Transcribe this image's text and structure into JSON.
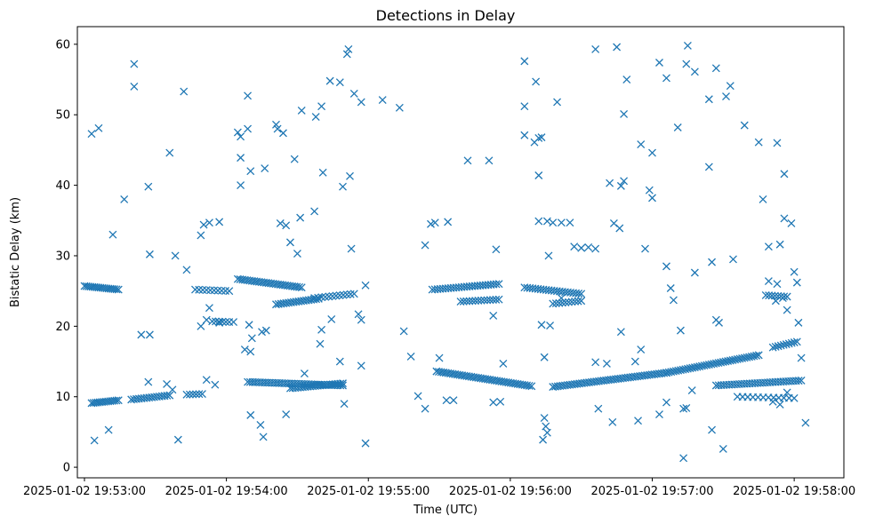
{
  "chart_data": {
    "type": "scatter",
    "title": "Detections in Delay",
    "xlabel": "Time (UTC)",
    "ylabel": "Bistatic Delay (km)",
    "marker": "x",
    "color": "#1f77b4",
    "grid": false,
    "x_unit": "minutes since 2025-01-02 19:53:00",
    "xlim": [
      -0.05,
      5.35
    ],
    "ylim": [
      -1.5,
      62.5
    ],
    "x_ticks": [
      {
        "value": 0,
        "label": "2025-01-02 19:53:00"
      },
      {
        "value": 1,
        "label": "2025-01-02 19:54:00"
      },
      {
        "value": 2,
        "label": "2025-01-02 19:55:00"
      },
      {
        "value": 3,
        "label": "2025-01-02 19:56:00"
      },
      {
        "value": 4,
        "label": "2025-01-02 19:57:00"
      },
      {
        "value": 5,
        "label": "2025-01-02 19:58:00"
      }
    ],
    "y_ticks": [
      {
        "value": 0,
        "label": "0"
      },
      {
        "value": 10,
        "label": "10"
      },
      {
        "value": 20,
        "label": "20"
      },
      {
        "value": 30,
        "label": "30"
      },
      {
        "value": 40,
        "label": "40"
      },
      {
        "value": 50,
        "label": "50"
      },
      {
        "value": 60,
        "label": "60"
      }
    ],
    "tracks": [
      {
        "name": "track-upper-early",
        "x0": 0.0,
        "x1": 0.24,
        "y0": 25.7,
        "y1": 25.2,
        "n": 18
      },
      {
        "name": "track-lower-early",
        "x0": 0.05,
        "x1": 0.24,
        "y0": 9.1,
        "y1": 9.5,
        "n": 14
      },
      {
        "name": "track-lower-rise",
        "x0": 0.33,
        "x1": 0.6,
        "y0": 9.6,
        "y1": 10.2,
        "n": 16
      },
      {
        "name": "track-lower-flat",
        "x0": 0.72,
        "x1": 0.83,
        "y0": 10.3,
        "y1": 10.4,
        "n": 6
      },
      {
        "name": "track-upper-mid",
        "x0": 0.78,
        "x1": 1.02,
        "y0": 25.2,
        "y1": 25.0,
        "n": 10
      },
      {
        "name": "track-upper-mid2",
        "x0": 0.9,
        "x1": 1.02,
        "y0": 20.7,
        "y1": 20.6,
        "n": 6
      },
      {
        "name": "track-upper-dec",
        "x0": 1.08,
        "x1": 1.53,
        "y0": 26.7,
        "y1": 25.5,
        "n": 28
      },
      {
        "name": "track-upper-rise",
        "x0": 1.35,
        "x1": 1.65,
        "y0": 23.1,
        "y1": 23.9,
        "n": 18
      },
      {
        "name": "track-lower-mid",
        "x0": 1.15,
        "x1": 1.82,
        "y0": 12.1,
        "y1": 11.6,
        "n": 40
      },
      {
        "name": "track-lower-mid2",
        "x0": 1.45,
        "x1": 1.82,
        "y0": 11.2,
        "y1": 11.9,
        "n": 22
      },
      {
        "name": "track-upper-mid3",
        "x0": 1.62,
        "x1": 1.9,
        "y0": 24.0,
        "y1": 24.6,
        "n": 12
      },
      {
        "name": "track-upper-center",
        "x0": 2.45,
        "x1": 2.92,
        "y0": 25.2,
        "y1": 26.0,
        "n": 26
      },
      {
        "name": "track-upper-center2",
        "x0": 2.65,
        "x1": 2.92,
        "y0": 23.5,
        "y1": 23.8,
        "n": 14
      },
      {
        "name": "track-lower-dec",
        "x0": 2.48,
        "x1": 3.15,
        "y0": 13.6,
        "y1": 11.5,
        "n": 42
      },
      {
        "name": "track-upper-late",
        "x0": 3.1,
        "x1": 3.5,
        "y0": 25.5,
        "y1": 24.6,
        "n": 22
      },
      {
        "name": "track-upper-late2",
        "x0": 3.3,
        "x1": 3.5,
        "y0": 23.2,
        "y1": 23.6,
        "n": 10
      },
      {
        "name": "track-lower-rise2",
        "x0": 3.3,
        "x1": 4.1,
        "y0": 11.4,
        "y1": 13.4,
        "n": 48
      },
      {
        "name": "track-lower-rise3",
        "x0": 4.1,
        "x1": 4.75,
        "y0": 13.4,
        "y1": 15.9,
        "n": 40
      },
      {
        "name": "track-lower-flat2",
        "x0": 4.45,
        "x1": 5.05,
        "y0": 11.6,
        "y1": 12.3,
        "n": 34
      },
      {
        "name": "track-lower-late",
        "x0": 4.85,
        "x1": 5.02,
        "y0": 17.0,
        "y1": 17.8,
        "n": 10
      },
      {
        "name": "track-lower-late2",
        "x0": 4.6,
        "x1": 5.0,
        "y0": 10.0,
        "y1": 9.8,
        "n": 12
      },
      {
        "name": "track-upper-end",
        "x0": 4.8,
        "x1": 4.95,
        "y0": 24.4,
        "y1": 24.2,
        "n": 8
      }
    ],
    "scatter_points": [
      [
        0.05,
        47.3
      ],
      [
        0.1,
        48.1
      ],
      [
        0.35,
        57.2
      ],
      [
        0.35,
        54.0
      ],
      [
        0.45,
        39.8
      ],
      [
        0.28,
        38.0
      ],
      [
        0.2,
        33.0
      ],
      [
        0.46,
        30.2
      ],
      [
        0.6,
        44.6
      ],
      [
        0.7,
        53.3
      ],
      [
        0.64,
        30.0
      ],
      [
        0.72,
        28.0
      ],
      [
        0.84,
        34.4
      ],
      [
        0.88,
        34.7
      ],
      [
        0.95,
        34.8
      ],
      [
        0.82,
        32.9
      ],
      [
        0.17,
        5.3
      ],
      [
        0.07,
        3.8
      ],
      [
        0.66,
        3.9
      ],
      [
        0.4,
        18.8
      ],
      [
        0.46,
        18.8
      ],
      [
        0.45,
        12.1
      ],
      [
        0.58,
        11.8
      ],
      [
        0.62,
        11.0
      ],
      [
        0.82,
        20.0
      ],
      [
        0.86,
        20.9
      ],
      [
        0.88,
        22.6
      ],
      [
        0.92,
        11.7
      ],
      [
        0.86,
        12.4
      ],
      [
        0.95,
        20.5
      ],
      [
        1.05,
        20.6
      ],
      [
        1.08,
        47.5
      ],
      [
        1.1,
        46.9
      ],
      [
        1.1,
        43.9
      ],
      [
        1.17,
        42.0
      ],
      [
        1.15,
        52.7
      ],
      [
        1.15,
        48.0
      ],
      [
        1.27,
        42.4
      ],
      [
        1.35,
        48.6
      ],
      [
        1.36,
        48.0
      ],
      [
        1.4,
        47.4
      ],
      [
        1.48,
        43.7
      ],
      [
        1.53,
        50.6
      ],
      [
        1.63,
        49.7
      ],
      [
        1.67,
        51.2
      ],
      [
        1.73,
        54.8
      ],
      [
        1.8,
        54.6
      ],
      [
        1.85,
        58.6
      ],
      [
        1.86,
        59.3
      ],
      [
        1.9,
        53.0
      ],
      [
        1.95,
        51.8
      ],
      [
        1.87,
        41.3
      ],
      [
        1.82,
        39.8
      ],
      [
        1.68,
        41.8
      ],
      [
        1.62,
        36.3
      ],
      [
        1.52,
        35.4
      ],
      [
        1.42,
        34.3
      ],
      [
        1.38,
        34.6
      ],
      [
        1.45,
        31.9
      ],
      [
        1.5,
        30.3
      ],
      [
        1.1,
        40.0
      ],
      [
        1.13,
        16.7
      ],
      [
        1.17,
        16.4
      ],
      [
        1.18,
        18.3
      ],
      [
        1.25,
        19.2
      ],
      [
        1.28,
        19.4
      ],
      [
        1.16,
        20.2
      ],
      [
        1.17,
        7.4
      ],
      [
        1.24,
        6.0
      ],
      [
        1.26,
        4.3
      ],
      [
        1.42,
        7.5
      ],
      [
        1.55,
        13.3
      ],
      [
        1.66,
        17.5
      ],
      [
        1.67,
        19.5
      ],
      [
        1.74,
        21.0
      ],
      [
        1.8,
        15.0
      ],
      [
        1.83,
        9.0
      ],
      [
        1.95,
        14.4
      ],
      [
        1.98,
        3.4
      ],
      [
        1.88,
        31.0
      ],
      [
        1.93,
        21.7
      ],
      [
        1.95,
        20.9
      ],
      [
        1.98,
        25.8
      ],
      [
        2.1,
        52.1
      ],
      [
        2.22,
        51.0
      ],
      [
        2.25,
        19.3
      ],
      [
        2.3,
        15.7
      ],
      [
        2.4,
        31.5
      ],
      [
        2.44,
        34.5
      ],
      [
        2.47,
        34.7
      ],
      [
        2.56,
        34.8
      ],
      [
        2.5,
        15.5
      ],
      [
        2.4,
        8.3
      ],
      [
        2.35,
        10.1
      ],
      [
        2.55,
        9.5
      ],
      [
        2.6,
        9.5
      ],
      [
        2.7,
        43.5
      ],
      [
        2.85,
        43.5
      ],
      [
        2.9,
        30.9
      ],
      [
        2.88,
        21.5
      ],
      [
        2.88,
        9.2
      ],
      [
        2.93,
        9.3
      ],
      [
        2.95,
        14.7
      ],
      [
        3.1,
        57.6
      ],
      [
        3.1,
        51.2
      ],
      [
        3.1,
        47.1
      ],
      [
        3.18,
        54.7
      ],
      [
        3.2,
        46.7
      ],
      [
        3.17,
        46.1
      ],
      [
        3.22,
        46.8
      ],
      [
        3.2,
        41.4
      ],
      [
        3.2,
        34.9
      ],
      [
        3.26,
        34.9
      ],
      [
        3.3,
        34.7
      ],
      [
        3.36,
        34.7
      ],
      [
        3.42,
        34.7
      ],
      [
        3.27,
        30.0
      ],
      [
        3.28,
        20.1
      ],
      [
        3.22,
        20.2
      ],
      [
        3.24,
        15.6
      ],
      [
        3.24,
        7.0
      ],
      [
        3.25,
        5.8
      ],
      [
        3.26,
        4.9
      ],
      [
        3.23,
        3.9
      ],
      [
        3.33,
        51.8
      ],
      [
        3.36,
        24.0
      ],
      [
        3.45,
        31.3
      ],
      [
        3.5,
        31.1
      ],
      [
        3.55,
        31.2
      ],
      [
        3.6,
        31.0
      ],
      [
        3.6,
        59.3
      ],
      [
        3.75,
        59.6
      ],
      [
        3.7,
        40.3
      ],
      [
        3.78,
        39.9
      ],
      [
        3.8,
        50.1
      ],
      [
        3.82,
        55.0
      ],
      [
        3.8,
        40.6
      ],
      [
        3.77,
        33.9
      ],
      [
        3.73,
        34.6
      ],
      [
        3.78,
        19.2
      ],
      [
        3.72,
        6.4
      ],
      [
        3.62,
        8.3
      ],
      [
        3.6,
        14.9
      ],
      [
        3.68,
        14.7
      ],
      [
        3.92,
        45.8
      ],
      [
        3.98,
        39.3
      ],
      [
        4.0,
        38.2
      ],
      [
        4.05,
        57.4
      ],
      [
        4.1,
        55.2
      ],
      [
        4.0,
        44.6
      ],
      [
        3.95,
        31.0
      ],
      [
        3.92,
        16.7
      ],
      [
        3.88,
        15.0
      ],
      [
        3.9,
        6.6
      ],
      [
        4.05,
        7.5
      ],
      [
        4.1,
        9.2
      ],
      [
        4.1,
        28.5
      ],
      [
        4.13,
        25.4
      ],
      [
        4.15,
        23.7
      ],
      [
        4.18,
        48.2
      ],
      [
        4.2,
        19.4
      ],
      [
        4.22,
        8.3
      ],
      [
        4.24,
        8.4
      ],
      [
        4.28,
        10.9
      ],
      [
        4.3,
        27.6
      ],
      [
        4.25,
        59.8
      ],
      [
        4.24,
        57.2
      ],
      [
        4.3,
        56.1
      ],
      [
        4.4,
        52.2
      ],
      [
        4.45,
        56.6
      ],
      [
        4.42,
        29.1
      ],
      [
        4.4,
        42.6
      ],
      [
        4.45,
        20.9
      ],
      [
        4.47,
        20.5
      ],
      [
        4.42,
        5.3
      ],
      [
        4.5,
        2.6
      ],
      [
        4.22,
        1.3
      ],
      [
        4.55,
        54.1
      ],
      [
        4.52,
        52.6
      ],
      [
        4.57,
        29.5
      ],
      [
        4.65,
        48.5
      ],
      [
        4.75,
        46.1
      ],
      [
        4.78,
        38.0
      ],
      [
        4.82,
        31.3
      ],
      [
        4.82,
        26.4
      ],
      [
        4.88,
        46.0
      ],
      [
        4.9,
        31.6
      ],
      [
        4.93,
        41.6
      ],
      [
        4.93,
        35.3
      ],
      [
        4.92,
        24.0
      ],
      [
        4.95,
        22.3
      ],
      [
        4.88,
        26.0
      ],
      [
        4.87,
        23.6
      ],
      [
        4.98,
        34.6
      ],
      [
        5.0,
        27.7
      ],
      [
        5.02,
        26.2
      ],
      [
        5.03,
        20.5
      ],
      [
        5.05,
        15.5
      ],
      [
        5.08,
        6.3
      ],
      [
        4.85,
        9.3
      ],
      [
        4.9,
        8.9
      ],
      [
        4.95,
        10.6
      ]
    ]
  }
}
